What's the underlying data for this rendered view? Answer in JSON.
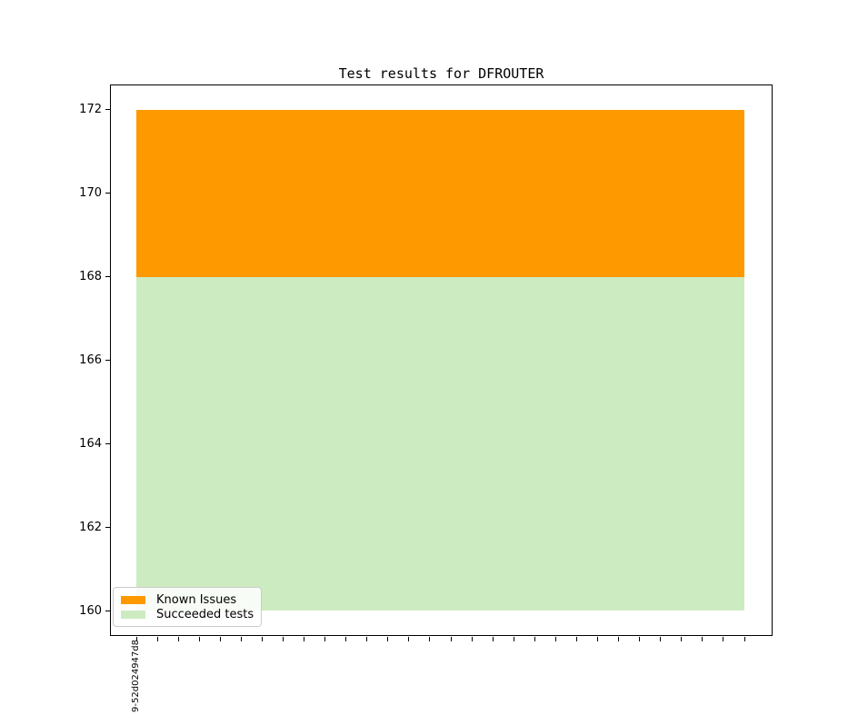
{
  "chart_data": {
    "type": "area",
    "stacked": true,
    "title": "Test results for DFROUTER",
    "ylim": [
      159.4,
      172.6
    ],
    "yticks": [
      160,
      162,
      164,
      166,
      168,
      170,
      172
    ],
    "x_ticks": {
      "count": 30,
      "first_label": "9-52d024947d8"
    },
    "series": [
      {
        "name": "Succeeded tests",
        "color": "#cdebc0",
        "value": 168,
        "band": [
          160,
          168
        ]
      },
      {
        "name": "Known Issues",
        "color": "#ff9900",
        "value": 4,
        "band": [
          168,
          172
        ]
      }
    ],
    "legend": {
      "position": "lower-left",
      "entries": [
        "Known Issues",
        "Succeeded tests"
      ]
    }
  }
}
